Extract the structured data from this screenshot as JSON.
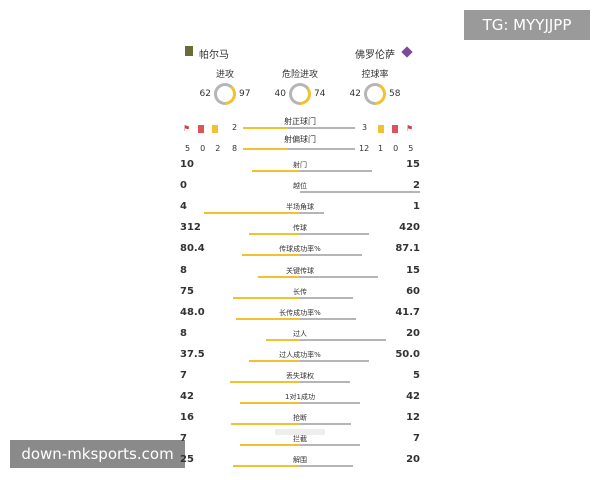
{
  "overlay": {
    "telegram": "TG: MYYJJPP",
    "site": "down-mksports.com"
  },
  "teams": {
    "home": "帕尔马",
    "away": "佛罗伦萨"
  },
  "colors": {
    "home": "#f2c12e",
    "away": "#b5b5b5"
  },
  "gauges": [
    {
      "label": "进攻",
      "home": 62,
      "away": 97
    },
    {
      "label": "危险进攻",
      "home": 40,
      "away": 74
    },
    {
      "label": "控球率",
      "home": 42,
      "away": 58
    }
  ],
  "shots_on": {
    "label": "射正球门",
    "home": 2,
    "away": 3,
    "icons_home": [
      "corner-flag-icon",
      "red-card-icon",
      "yellow-card-icon"
    ],
    "icons_away": [
      "yellow-card-icon",
      "red-card-icon",
      "corner-flag-icon"
    ]
  },
  "shots_off": {
    "label": "射偏球门",
    "home": 8,
    "away": 12,
    "home_counts": [
      "5",
      "0",
      "2"
    ],
    "away_counts": [
      "1",
      "0",
      "5"
    ]
  },
  "stats": [
    {
      "label": "射门",
      "home": "10",
      "away": "15"
    },
    {
      "label": "越位",
      "home": "0",
      "away": "2"
    },
    {
      "label": "半场角球",
      "home": "4",
      "away": "1"
    },
    {
      "label": "传球",
      "home": "312",
      "away": "420"
    },
    {
      "label": "传球成功率%",
      "home": "80.4",
      "away": "87.1"
    },
    {
      "label": "关键传球",
      "home": "8",
      "away": "15"
    },
    {
      "label": "长传",
      "home": "75",
      "away": "60"
    },
    {
      "label": "长传成功率%",
      "home": "48.0",
      "away": "41.7"
    },
    {
      "label": "过人",
      "home": "8",
      "away": "20"
    },
    {
      "label": "过人成功率%",
      "home": "37.5",
      "away": "50.0"
    },
    {
      "label": "丢失球权",
      "home": "7",
      "away": "5"
    },
    {
      "label": "1对1成功",
      "home": "42",
      "away": "42"
    },
    {
      "label": "抢断",
      "home": "16",
      "away": "12"
    },
    {
      "label": "拦截",
      "home": "7",
      "away": "7"
    },
    {
      "label": "解围",
      "home": "25",
      "away": "20"
    }
  ]
}
